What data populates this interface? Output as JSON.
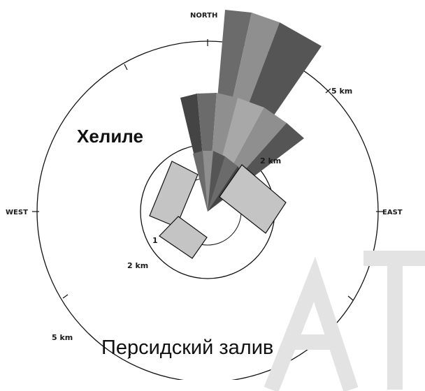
{
  "compass": {
    "north": "NORTH",
    "east": "EAST",
    "west": "WEST"
  },
  "rings": {
    "inner_label": "2 km",
    "outer_label_ne": "5 km",
    "outer_label_sw": "5 km",
    "center_label": "1",
    "mid_label_ne": "2 km"
  },
  "labels": {
    "place": "Хелиле",
    "sea": "Персидский залив"
  },
  "colors": {
    "dark": "#444444",
    "mid": "#6b6b6b",
    "light": "#8f8f8f",
    "lighter": "#a8a8a8",
    "box": "#c4c4c4"
  }
}
